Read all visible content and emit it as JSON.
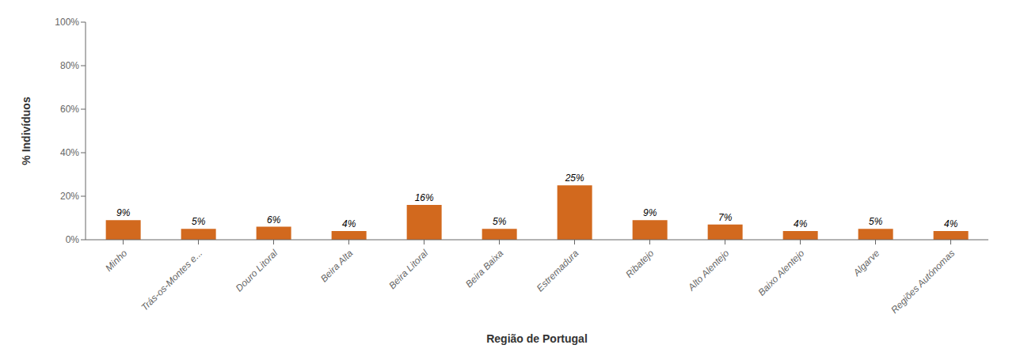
{
  "chart_data": {
    "type": "bar",
    "categories": [
      "Minho",
      "Trás-os-Montes e...",
      "Douro Litoral",
      "Beira Alta",
      "Beira Litoral",
      "Beira Baixa",
      "Estremadura",
      "Ribatejo",
      "Alto Alentejo",
      "Baixo Alentejo",
      "Algarve",
      "Regiões Autónomas"
    ],
    "values": [
      9,
      5,
      6,
      4,
      16,
      5,
      25,
      9,
      7,
      4,
      5,
      4
    ],
    "value_labels": [
      "9%",
      "5%",
      "6%",
      "4%",
      "16%",
      "5%",
      "25%",
      "9%",
      "7%",
      "4%",
      "5%",
      "4%"
    ],
    "data_labels": true,
    "color": "#D2691E",
    "xlabel": "Região de Portugal",
    "ylabel": "% Indivíduos",
    "ylim": [
      0,
      100
    ],
    "yticks": [
      {
        "value": 0,
        "label": "0%"
      },
      {
        "value": 20,
        "label": "20%"
      },
      {
        "value": 40,
        "label": "40%"
      },
      {
        "value": 60,
        "label": "60%"
      },
      {
        "value": 80,
        "label": "80%"
      },
      {
        "value": 100,
        "label": "100%"
      }
    ],
    "grid": false
  }
}
